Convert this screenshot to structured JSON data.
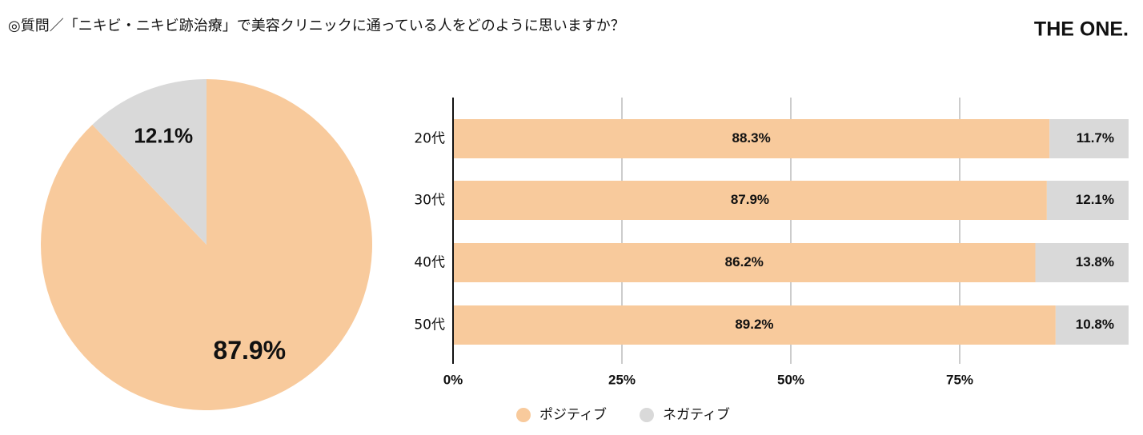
{
  "header": {
    "title": "◎質問／「ニキビ・ニキビ跡治療」で美容クリニックに通っている人をどのように思いますか？",
    "brand": "THE ONE."
  },
  "chart_data": [
    {
      "type": "pie",
      "values": [
        87.9,
        12.1
      ],
      "value_labels": [
        "87.9%",
        "12.1%"
      ],
      "colors": [
        "#f8ca9c",
        "#d9d9d9"
      ]
    },
    {
      "type": "stacked_bar",
      "orientation": "horizontal",
      "categories": [
        "20代",
        "30代",
        "40代",
        "50代"
      ],
      "series": [
        {
          "name": "ポジティブ",
          "color": "#f8ca9c",
          "values": [
            88.3,
            87.9,
            86.2,
            89.2
          ],
          "value_labels": [
            "88.3%",
            "87.9%",
            "86.2%",
            "89.2%"
          ]
        },
        {
          "name": "ネガティブ",
          "color": "#d9d9d9",
          "values": [
            11.7,
            12.1,
            13.8,
            10.8
          ],
          "value_labels": [
            "11.7%",
            "12.1%",
            "13.8%",
            "10.8%"
          ]
        }
      ],
      "xlim": [
        0,
        100
      ],
      "xticks": [
        {
          "value": 0,
          "label": "0%"
        },
        {
          "value": 25,
          "label": "25%"
        },
        {
          "value": 50,
          "label": "50%"
        },
        {
          "value": 75,
          "label": "75%"
        }
      ],
      "grid": true,
      "legend": "bottom"
    }
  ]
}
